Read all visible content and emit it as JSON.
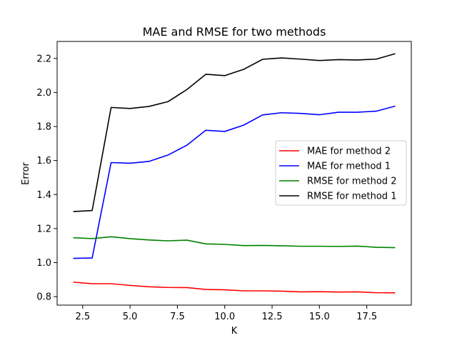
{
  "chart_data": {
    "type": "line",
    "title": "MAE and RMSE for two methods",
    "xlabel": "K",
    "ylabel": "Error",
    "xlim": [
      1.15,
      19.85
    ],
    "ylim": [
      0.75,
      2.3
    ],
    "x_ticks": [
      2.5,
      5.0,
      7.5,
      10.0,
      12.5,
      15.0,
      17.5
    ],
    "x_tick_labels": [
      "2.5",
      "5.0",
      "7.5",
      "10.0",
      "12.5",
      "15.0",
      "17.5"
    ],
    "y_ticks": [
      0.8,
      1.0,
      1.2,
      1.4,
      1.6,
      1.8,
      2.0,
      2.2
    ],
    "y_tick_labels": [
      "0.8",
      "1.0",
      "1.2",
      "1.4",
      "1.6",
      "1.8",
      "2.0",
      "2.2"
    ],
    "grid": false,
    "legend_position": "right",
    "x": [
      2,
      3,
      4,
      5,
      6,
      7,
      8,
      9,
      10,
      11,
      12,
      13,
      14,
      15,
      16,
      17,
      18,
      19
    ],
    "series": [
      {
        "name": "MAE for method 2",
        "color": "#ff0000",
        "values": [
          0.885,
          0.876,
          0.876,
          0.866,
          0.858,
          0.854,
          0.853,
          0.842,
          0.84,
          0.834,
          0.834,
          0.832,
          0.828,
          0.829,
          0.827,
          0.828,
          0.823,
          0.822
        ]
      },
      {
        "name": "MAE for method 1",
        "color": "#0000ff",
        "values": [
          1.025,
          1.027,
          1.588,
          1.584,
          1.595,
          1.632,
          1.69,
          1.778,
          1.771,
          1.808,
          1.868,
          1.881,
          1.877,
          1.869,
          1.884,
          1.884,
          1.89,
          1.92
        ]
      },
      {
        "name": "RMSE for method 2",
        "color": "#008000",
        "values": [
          1.146,
          1.141,
          1.152,
          1.141,
          1.133,
          1.128,
          1.132,
          1.11,
          1.107,
          1.1,
          1.101,
          1.099,
          1.096,
          1.096,
          1.095,
          1.097,
          1.09,
          1.088
        ]
      },
      {
        "name": "RMSE for method 1",
        "color": "#000000",
        "values": [
          1.3,
          1.306,
          1.912,
          1.906,
          1.918,
          1.946,
          2.017,
          2.107,
          2.099,
          2.136,
          2.195,
          2.203,
          2.196,
          2.188,
          2.193,
          2.191,
          2.196,
          2.228
        ]
      }
    ]
  }
}
